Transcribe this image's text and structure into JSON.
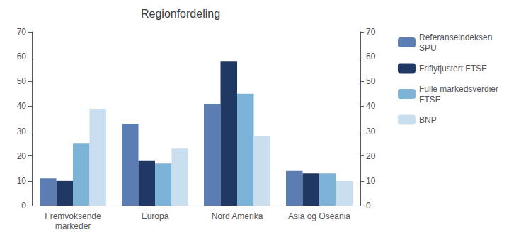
{
  "chart_data": {
    "type": "bar",
    "title": "Regionfordeling",
    "categories": [
      "Fremvoksende\nmarkeder",
      "Europa",
      "Nord Amerika",
      "Asia og Oseania"
    ],
    "series": [
      {
        "name": "Referanseindeksen\nSPU",
        "color": "#5b7db1",
        "values": [
          11,
          33,
          41,
          14
        ]
      },
      {
        "name": "Friflytjustert FTSE",
        "color": "#1f3864",
        "values": [
          10,
          18,
          58,
          13
        ]
      },
      {
        "name": "Fulle markedsverdier\nFTSE",
        "color": "#7eb3d8",
        "values": [
          25,
          17,
          45,
          13
        ]
      },
      {
        "name": "BNP",
        "color": "#c9dff0",
        "values": [
          39,
          23,
          28,
          10
        ]
      }
    ],
    "ylim": [
      0,
      70
    ],
    "yticks": [
      0,
      10,
      20,
      30,
      40,
      50,
      60,
      70
    ],
    "y2lim": [
      0,
      70
    ],
    "y2ticks": [
      0,
      10,
      20,
      30,
      40,
      50,
      60,
      70
    ],
    "grid": false,
    "legend": "right"
  }
}
